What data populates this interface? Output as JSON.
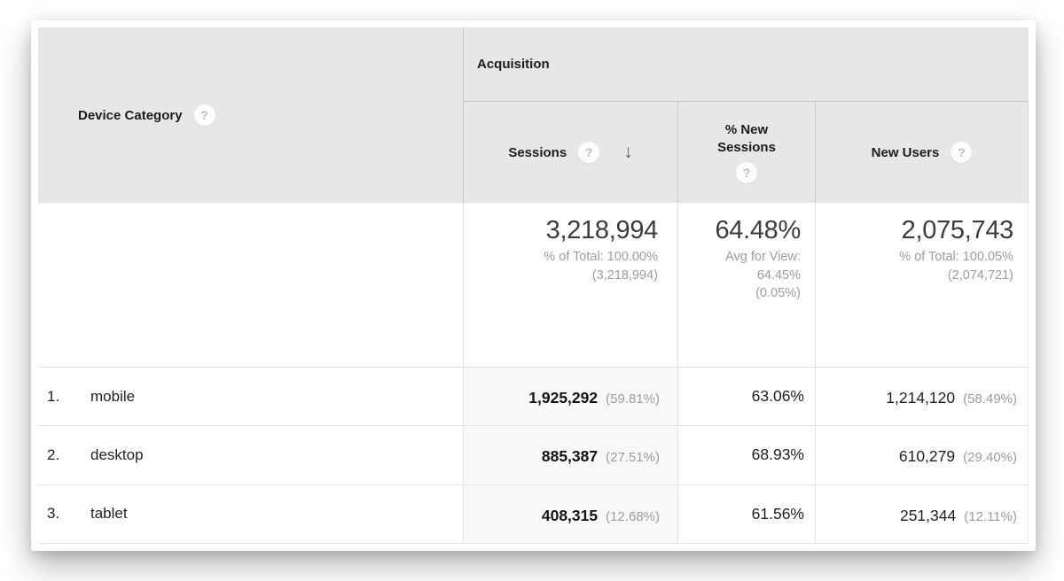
{
  "icons": {
    "help": "?",
    "sort_desc": "↓"
  },
  "header": {
    "group": "Acquisition",
    "dimension": "Device Category",
    "metrics": [
      "Sessions",
      "% New Sessions",
      "New Users"
    ]
  },
  "summary": {
    "sessions": {
      "value": "3,218,994",
      "sub1": "% of Total: 100.00%",
      "sub2": "(3,218,994)"
    },
    "percent_new_sessions": {
      "value": "64.48%",
      "sub1": "Avg for View:",
      "sub2": "64.45%",
      "sub3": "(0.05%)"
    },
    "new_users": {
      "value": "2,075,743",
      "sub1": "% of Total: 100.05%",
      "sub2": "(2,074,721)"
    }
  },
  "rows": [
    {
      "rank": "1.",
      "device": "mobile",
      "sessions": "1,925,292",
      "sessions_share": "(59.81%)",
      "percent_new_sessions": "63.06%",
      "new_users": "1,214,120",
      "new_users_share": "(58.49%)"
    },
    {
      "rank": "2.",
      "device": "desktop",
      "sessions": "885,387",
      "sessions_share": "(27.51%)",
      "percent_new_sessions": "68.93%",
      "new_users": "610,279",
      "new_users_share": "(29.40%)"
    },
    {
      "rank": "3.",
      "device": "tablet",
      "sessions": "408,315",
      "sessions_share": "(12.68%)",
      "percent_new_sessions": "61.56%",
      "new_users": "251,344",
      "new_users_share": "(12.11%)"
    }
  ],
  "colors": {
    "header_bg": "#e7e7e7",
    "sorted_column_bg": "#f8f8f8",
    "secondary_text": "#9c9c9c"
  }
}
